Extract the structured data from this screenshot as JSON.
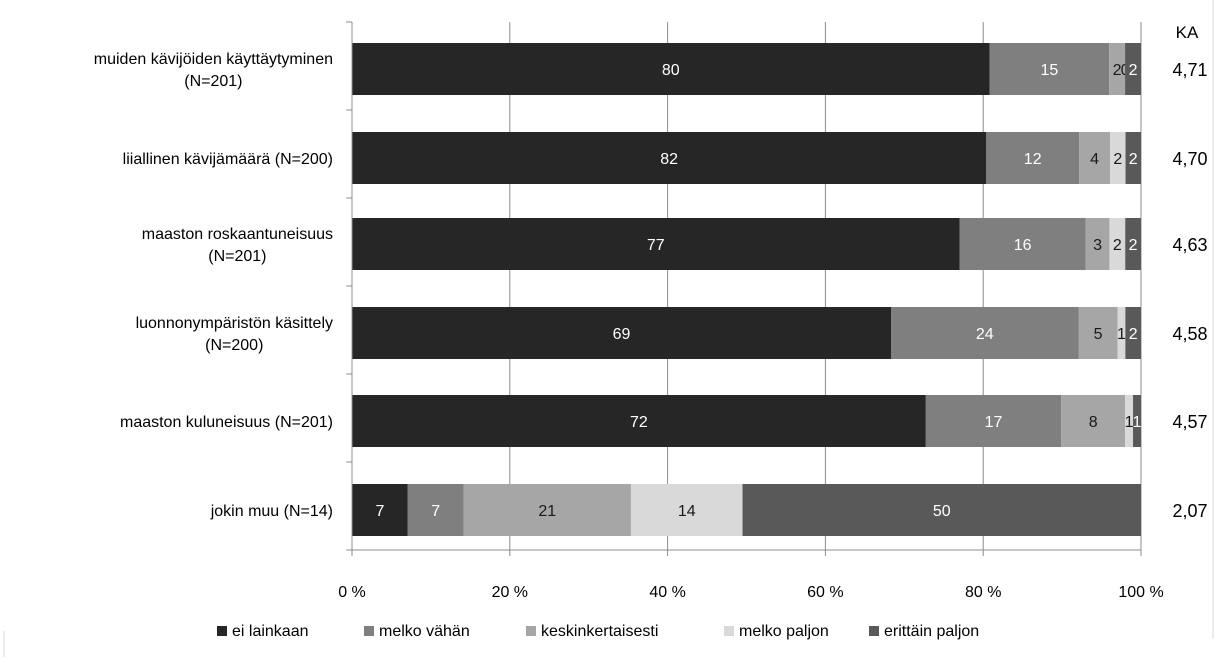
{
  "chart_data": {
    "type": "bar",
    "orientation": "horizontal",
    "stacked": true,
    "percent_stacked": true,
    "categories": [
      [
        "muiden kävijöiden käyttäytyminen",
        "(N=201)"
      ],
      [
        "liiallinen kävijämäärä  (N=200)"
      ],
      [
        "maaston roskaantuneisuus",
        "(N=201)"
      ],
      [
        "luonnonympäristön käsittely",
        "(N=200)"
      ],
      [
        "maaston kuluneisuus (N=201)"
      ],
      [
        "jokin muu (N=14)"
      ]
    ],
    "series": [
      {
        "name": "ei lainkaan",
        "color": "#262626",
        "values": [
          80,
          82,
          77,
          69,
          72,
          7
        ]
      },
      {
        "name": "melko vähän",
        "color": "#7f7f7f",
        "values": [
          15,
          12,
          16,
          24,
          17,
          7
        ]
      },
      {
        "name": "keskinkertaisesti",
        "color": "#a6a6a6",
        "values": [
          2,
          4,
          3,
          5,
          8,
          21
        ]
      },
      {
        "name": "melko paljon",
        "color": "#d9d9d9",
        "values": [
          0,
          2,
          2,
          1,
          1,
          14
        ]
      },
      {
        "name": "erittäin paljon",
        "color": "#595959",
        "values": [
          2,
          2,
          2,
          2,
          1,
          50
        ]
      }
    ],
    "value_labels": [
      [
        "80",
        "15",
        "2",
        "0",
        "2"
      ],
      [
        "82",
        "12",
        "4",
        "2",
        "2"
      ],
      [
        "77",
        "16",
        "3",
        "2",
        "2"
      ],
      [
        "69",
        "24",
        "5",
        "1",
        "2"
      ],
      [
        "72",
        "17",
        "8",
        "1",
        "1"
      ],
      [
        "7",
        "7",
        "21",
        "14",
        "50"
      ]
    ],
    "right_column_header": "KA",
    "right_column_values": [
      "4,71",
      "4,70",
      "4,63",
      "4,58",
      "4,57",
      "2,07"
    ],
    "x_ticks": [
      "0 %",
      "20 %",
      "40 %",
      "60 %",
      "80 %",
      "100 %"
    ],
    "xlim": [
      0,
      100
    ],
    "grid": true,
    "legend_position": "bottom"
  }
}
